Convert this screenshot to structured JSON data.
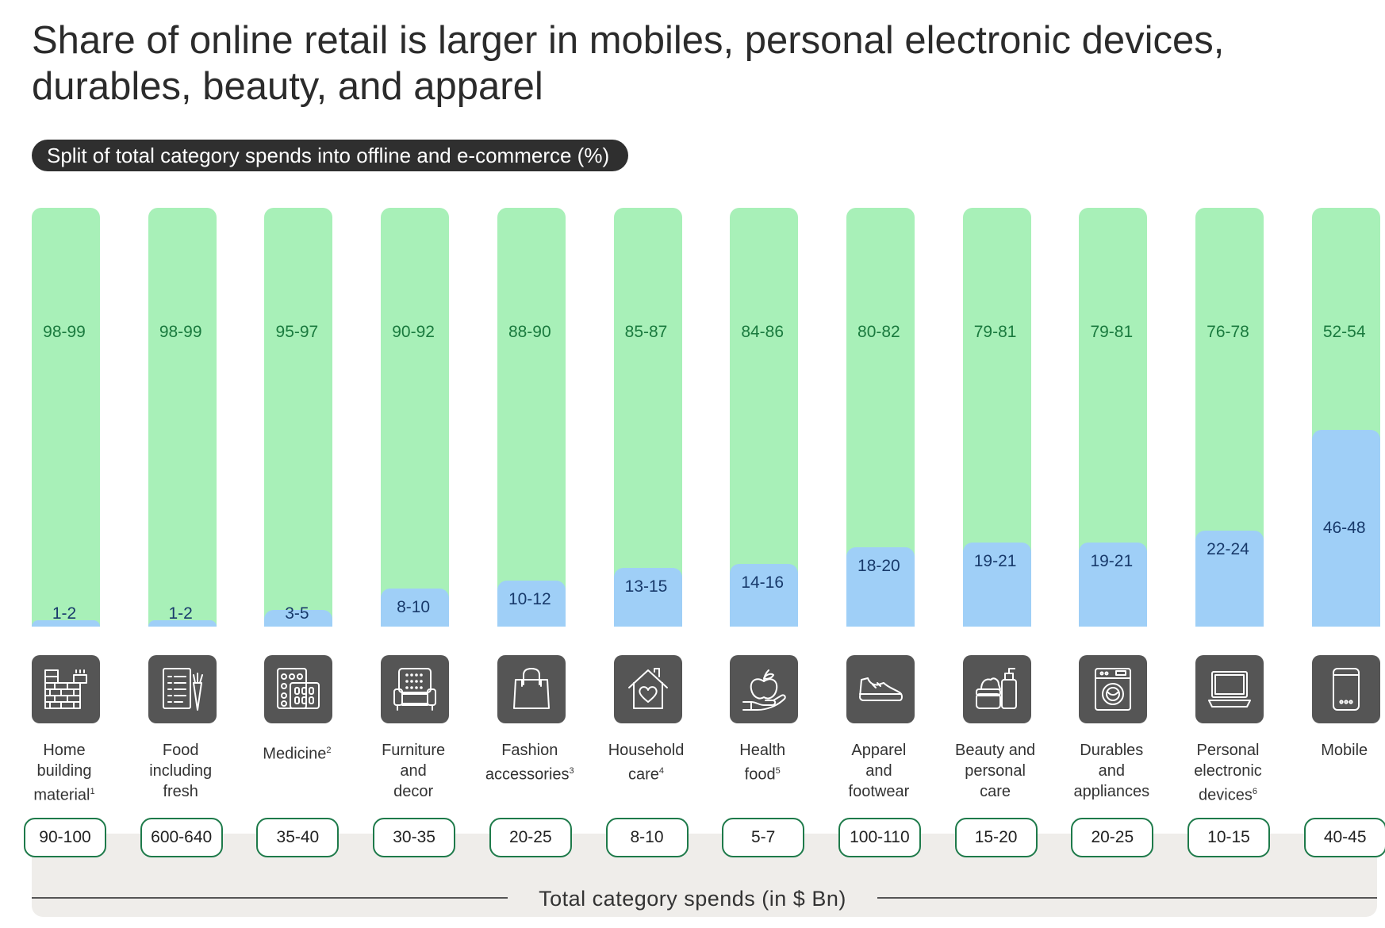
{
  "title": "Share of online retail is larger in mobiles, personal electronic devices, durables, beauty, and apparel",
  "subtitle": "Split of total category spends into offline and e-commerce (%)",
  "footer_label": "Total category spends (in $ Bn)",
  "colors": {
    "offline": "#a8f0b8",
    "online": "#9fcff7",
    "offline_text": "#1a7a3e",
    "online_text": "#183a6b",
    "pill_border": "#1e7a4a"
  },
  "chart_data": {
    "type": "bar",
    "stacked": true,
    "title": "Share of online retail is larger in mobiles, personal electronic devices, durables, beauty, and apparel",
    "subtitle": "Split of total category spends into offline and e-commerce (%)",
    "categories": [
      "Home building material",
      "Food including fresh",
      "Medicine",
      "Furniture and decor",
      "Fashion accessories",
      "Household care",
      "Health food",
      "Apparel and footwear",
      "Beauty and personal care",
      "Durables and appliances",
      "Personal electronic devices",
      "Mobile"
    ],
    "series": [
      {
        "name": "Offline",
        "labels": [
          "98-99",
          "98-99",
          "95-97",
          "90-92",
          "88-90",
          "85-87",
          "84-86",
          "80-82",
          "79-81",
          "79-81",
          "76-78",
          "52-54"
        ],
        "values": [
          98.5,
          98.5,
          96,
          91,
          89,
          86,
          85,
          81,
          80,
          80,
          77,
          53
        ]
      },
      {
        "name": "E-commerce",
        "labels": [
          "1-2",
          "1-2",
          "3-5",
          "8-10",
          "10-12",
          "13-15",
          "14-16",
          "18-20",
          "19-21",
          "19-21",
          "22-24",
          "46-48"
        ],
        "values": [
          1.5,
          1.5,
          4,
          9,
          11,
          14,
          15,
          19,
          20,
          20,
          23,
          47
        ]
      }
    ],
    "total_spends_label": "Total category spends (in $ Bn)",
    "total_spends": [
      "90-100",
      "600-640",
      "35-40",
      "30-35",
      "20-25",
      "8-10",
      "5-7",
      "100-110",
      "15-20",
      "20-25",
      "10-15",
      "40-45"
    ],
    "ylim": [
      0,
      100
    ]
  },
  "columns": [
    {
      "lines": [
        "Home",
        "building",
        "material"
      ],
      "sup": "1",
      "icon": "bricks-icon"
    },
    {
      "lines": [
        "Food",
        "including",
        "fresh"
      ],
      "sup": "",
      "icon": "grocery-list-icon"
    },
    {
      "lines": [
        "Medicine"
      ],
      "sup": "2",
      "icon": "pills-icon"
    },
    {
      "lines": [
        "Furniture",
        "and",
        "decor"
      ],
      "sup": "",
      "icon": "armchair-icon"
    },
    {
      "lines": [
        "Fashion",
        "accessories"
      ],
      "sup": "3",
      "icon": "handbag-icon"
    },
    {
      "lines": [
        "Household",
        "care"
      ],
      "sup": "4",
      "icon": "house-heart-icon"
    },
    {
      "lines": [
        "Health",
        "food"
      ],
      "sup": "5",
      "icon": "apple-hand-icon"
    },
    {
      "lines": [
        "Apparel",
        "and",
        "footwear"
      ],
      "sup": "",
      "icon": "sneaker-icon"
    },
    {
      "lines": [
        "Beauty and",
        "personal",
        "care"
      ],
      "sup": "",
      "icon": "cosmetics-icon"
    },
    {
      "lines": [
        "Durables",
        "and",
        "appliances"
      ],
      "sup": "",
      "icon": "washing-machine-icon"
    },
    {
      "lines": [
        "Personal",
        "electronic",
        "devices"
      ],
      "sup": "6",
      "icon": "laptop-icon"
    },
    {
      "lines": [
        "Mobile"
      ],
      "sup": "",
      "icon": "mobile-phone-icon"
    }
  ]
}
